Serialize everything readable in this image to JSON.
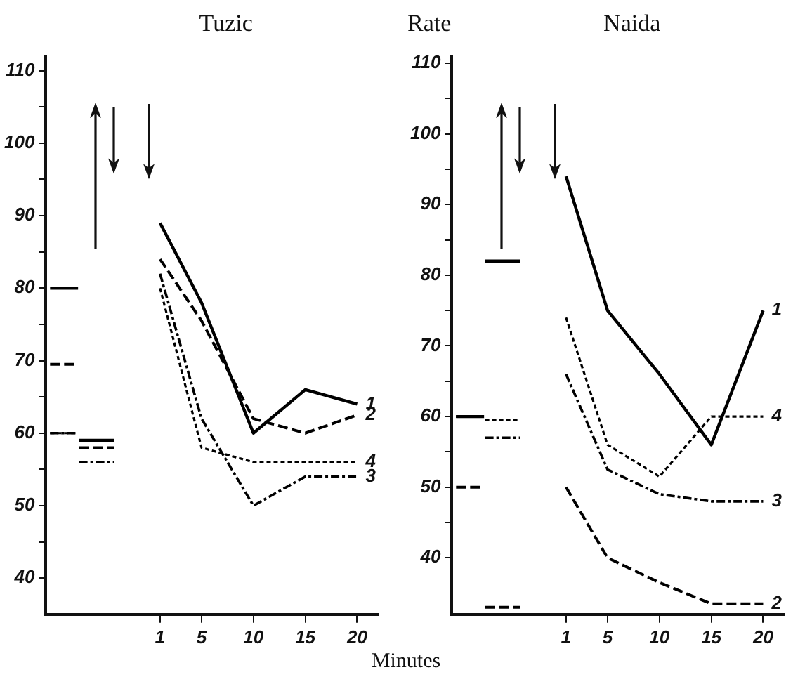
{
  "chart_data": [
    {
      "type": "line",
      "title": "Tuzic",
      "xlabel": "Minutes",
      "x": [
        -9.6,
        -6.9,
        -6.85,
        -6.8,
        -3.4,
        -1,
        1,
        5,
        10,
        15,
        20
      ],
      "xlim": [
        -10,
        22
      ],
      "xticks": [
        1,
        5,
        10,
        15,
        20
      ],
      "ylim": [
        35,
        112
      ],
      "yticks": [
        40,
        {
          "value": 45,
          "label": null
        },
        50,
        {
          "value": 55,
          "label": null
        },
        60,
        {
          "value": 65,
          "label": null
        },
        70,
        {
          "value": 75,
          "label": null
        },
        80,
        {
          "value": 85,
          "label": null
        },
        90,
        {
          "value": 95,
          "label": null
        },
        100,
        {
          "value": 105,
          "label": null
        },
        110
      ],
      "series": [
        {
          "name": "1",
          "color": "#000000",
          "line_style": "solid",
          "values": [
            80,
            80,
            null,
            59,
            59,
            null,
            89,
            78,
            60,
            66,
            64
          ]
        },
        {
          "name": "2",
          "color": "#000000",
          "line_style": "dashed",
          "values": [
            69.5,
            69.5,
            null,
            58,
            58,
            null,
            84,
            75.5,
            62,
            60,
            62.5
          ]
        },
        {
          "name": "3",
          "color": "#000000",
          "line_style": "dashdot",
          "values": [
            60,
            60,
            null,
            56,
            56,
            null,
            82,
            62,
            50,
            54,
            54
          ]
        },
        {
          "name": "4",
          "color": "#000000",
          "line_style": "dotted",
          "values": [
            60,
            60,
            null,
            59,
            59,
            null,
            80,
            58,
            56,
            56,
            56
          ]
        }
      ]
    },
    {
      "type": "line",
      "title": "Naida",
      "ylabel": "Rate",
      "x": [
        -9.6,
        -6.9,
        -6.85,
        -6.8,
        -3.4,
        -1,
        1,
        5,
        10,
        15,
        20
      ],
      "xlim": [
        -10,
        22
      ],
      "xticks": [
        1,
        5,
        10,
        15,
        20
      ],
      "ylim": [
        32,
        111
      ],
      "yticks": [
        40,
        {
          "value": 45,
          "label": null
        },
        50,
        {
          "value": 55,
          "label": null
        },
        60,
        {
          "value": 65,
          "label": null
        },
        70,
        {
          "value": 75,
          "label": null
        },
        80,
        {
          "value": 85,
          "label": null
        },
        90,
        {
          "value": 95,
          "label": null
        },
        100,
        {
          "value": 105,
          "label": null
        },
        110
      ],
      "series": [
        {
          "name": "1",
          "color": "#000000",
          "line_style": "solid",
          "values": [
            60,
            60,
            null,
            82,
            82,
            null,
            94,
            75,
            66,
            56,
            75
          ]
        },
        {
          "name": "2",
          "color": "#000000",
          "line_style": "dashed",
          "values": [
            50,
            50,
            null,
            33,
            33,
            null,
            50,
            40,
            36.5,
            33.5,
            33.5
          ]
        },
        {
          "name": "3",
          "color": "#000000",
          "line_style": "dashdot",
          "values": [
            60,
            60,
            null,
            57,
            57,
            null,
            66,
            52.5,
            49,
            48,
            48
          ]
        },
        {
          "name": "4",
          "color": "#000000",
          "line_style": "dotted",
          "values": [
            60,
            60,
            null,
            59.5,
            59.5,
            null,
            74,
            56,
            51.5,
            60,
            60
          ]
        }
      ]
    }
  ]
}
